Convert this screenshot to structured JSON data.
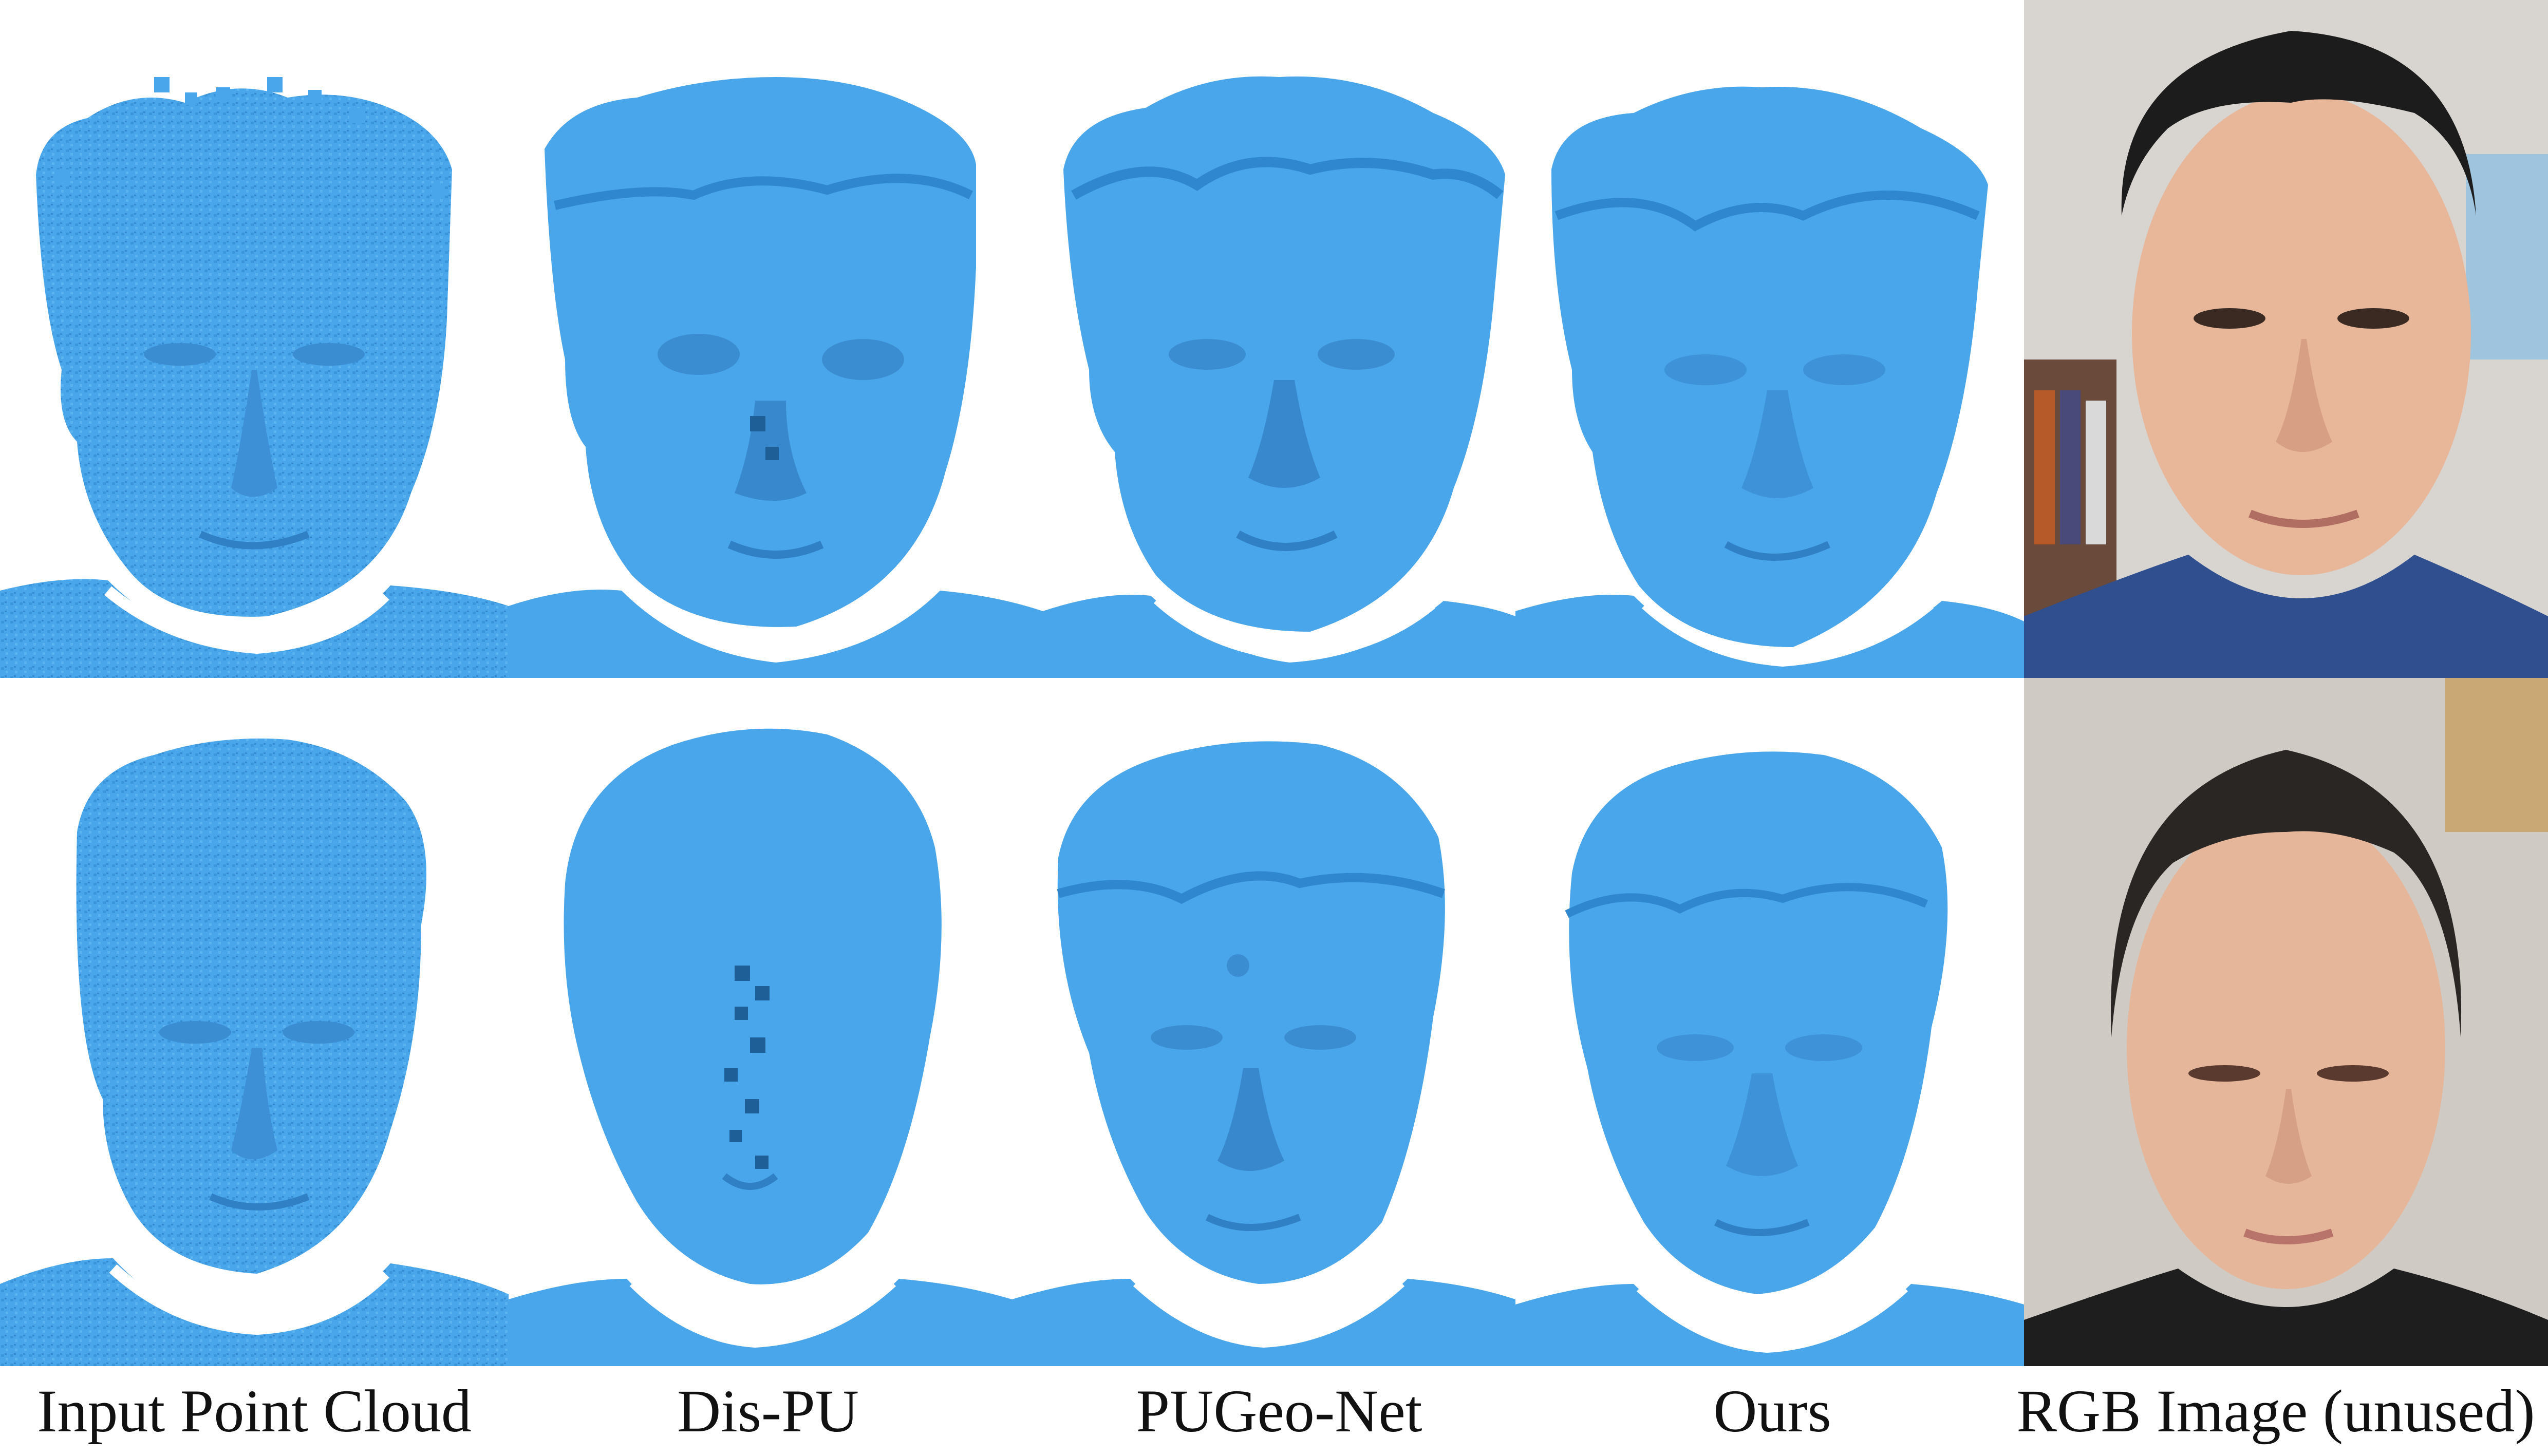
{
  "figure": {
    "captions": [
      "Input Point Cloud",
      "Dis-PU",
      "PUGeo-Net",
      "Ours",
      "RGB Image (unused)"
    ],
    "rows": [
      {
        "panels": [
          {
            "kind": "mesh",
            "style": "noisy-points",
            "depicts": "input point cloud of face 1"
          },
          {
            "kind": "mesh",
            "style": "blocky",
            "depicts": "Dis-PU reconstruction of face 1"
          },
          {
            "kind": "mesh",
            "style": "bumpy",
            "depicts": "PUGeo-Net reconstruction of face 1"
          },
          {
            "kind": "mesh",
            "style": "smooth",
            "depicts": "Ours reconstruction of face 1"
          },
          {
            "kind": "photo",
            "depicts": "RGB photo of face 1"
          }
        ]
      },
      {
        "panels": [
          {
            "kind": "mesh",
            "style": "noisy-points",
            "depicts": "input point cloud of face 2"
          },
          {
            "kind": "mesh",
            "style": "blocky",
            "depicts": "Dis-PU reconstruction of face 2"
          },
          {
            "kind": "mesh",
            "style": "bumpy",
            "depicts": "PUGeo-Net reconstruction of face 2"
          },
          {
            "kind": "mesh",
            "style": "smooth",
            "depicts": "Ours reconstruction of face 2"
          },
          {
            "kind": "photo",
            "depicts": "RGB photo of face 2"
          }
        ]
      }
    ]
  },
  "colors": {
    "mesh": "#4aa6ea",
    "mesh_shade": "#2f87cf",
    "mesh_dark": "#1d5f96",
    "background": "#ffffff",
    "caption_text": "#111111"
  }
}
